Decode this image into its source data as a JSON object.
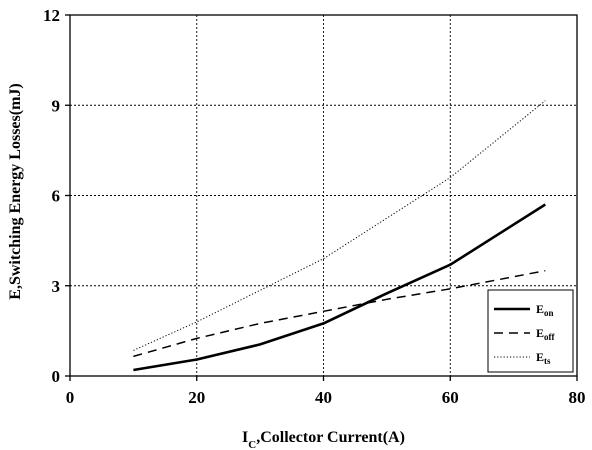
{
  "chart_data": {
    "type": "line",
    "xlabel_main": "I",
    "xlabel_sub": "C",
    "xlabel_rest": ",Collector Current(A)",
    "ylabel": "E,Switching Energy Losses(mJ)",
    "xlim": [
      0,
      80
    ],
    "ylim": [
      0,
      12
    ],
    "x_ticks": [
      0,
      20,
      40,
      60,
      80
    ],
    "x_tick_labels": [
      "0",
      "20",
      "40",
      "60",
      "80"
    ],
    "y_ticks": [
      0,
      3,
      6,
      9,
      12
    ],
    "y_tick_labels": [
      "0",
      "3",
      "6",
      "9",
      "12"
    ],
    "grid": true,
    "legend_position": "bottom-right",
    "series": [
      {
        "name_main": "E",
        "name_sub": "on",
        "style": "solid",
        "x": [
          10,
          20,
          30,
          40,
          50,
          60,
          75
        ],
        "y": [
          0.2,
          0.55,
          1.05,
          1.75,
          2.75,
          3.7,
          5.7
        ]
      },
      {
        "name_main": "E",
        "name_sub": "off",
        "style": "dashed",
        "x": [
          10,
          20,
          30,
          40,
          50,
          60,
          75
        ],
        "y": [
          0.65,
          1.25,
          1.75,
          2.15,
          2.55,
          2.9,
          3.5
        ]
      },
      {
        "name_main": "E",
        "name_sub": "ts",
        "style": "dotted",
        "x": [
          10,
          20,
          30,
          40,
          50,
          60,
          75
        ],
        "y": [
          0.85,
          1.8,
          2.85,
          3.9,
          5.25,
          6.6,
          9.15
        ]
      }
    ]
  }
}
